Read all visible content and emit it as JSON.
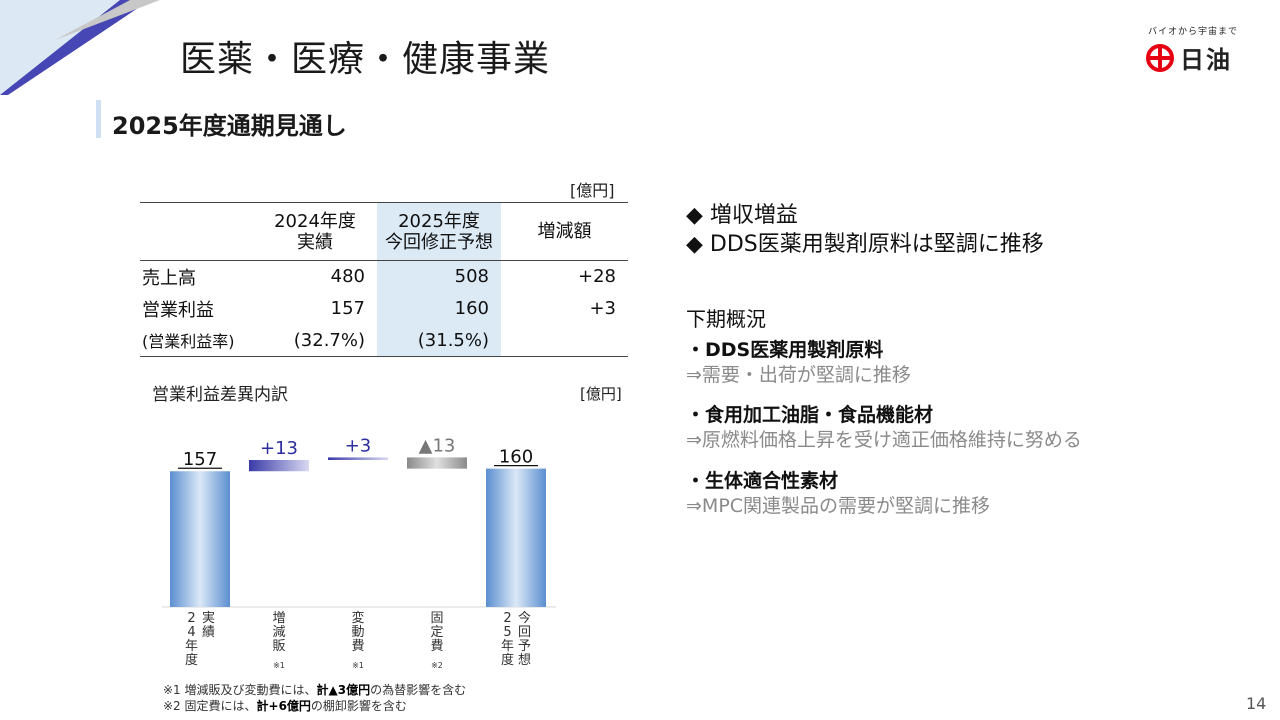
{
  "page": {
    "title": "医薬・医療・健康事業",
    "subtitle": "2025年度通期見通し",
    "page_number": "14"
  },
  "logo": {
    "tagline": "バイオから宇宙まで",
    "name": "日油"
  },
  "table": {
    "unit": "[億円]",
    "headers": [
      "",
      "2024年度\n実績",
      "2025年度\n今回修正予想",
      "増減額"
    ],
    "rows": [
      [
        "売上高",
        "480",
        "508",
        "+28"
      ],
      [
        "営業利益",
        "157",
        "160",
        "+3"
      ],
      [
        "(営業利益率)",
        "(32.7%)",
        "(31.5%)",
        ""
      ]
    ]
  },
  "chart_data": {
    "type": "bar",
    "subtype": "waterfall",
    "title": "営業利益差異内訳",
    "unit": "[億円]",
    "categories": [
      "24年度実績",
      "増減販",
      "変動費",
      "固定費",
      "25年度今回予想"
    ],
    "category_labels": [
      {
        "cols": [
          "24年度",
          "実績"
        ],
        "note": ""
      },
      {
        "cols": [
          "増減販"
        ],
        "note": "※1"
      },
      {
        "cols": [
          "変動費"
        ],
        "note": "※1"
      },
      {
        "cols": [
          "固定費"
        ],
        "note": "※2"
      },
      {
        "cols": [
          "25年度",
          "今回予想"
        ],
        "note": ""
      }
    ],
    "values": [
      157,
      13,
      3,
      -13,
      160
    ],
    "value_labels": [
      "157",
      "+13",
      "+3",
      "▲13",
      "160"
    ],
    "bar_kinds": [
      "total",
      "increase",
      "increase",
      "decrease",
      "total"
    ],
    "colors": {
      "total": "#5b93d3",
      "increase": "#3a3aa8",
      "decrease": "#9a9a9a"
    },
    "ylim": [
      0,
      170
    ]
  },
  "footnotes": [
    {
      "prefix": "※1 増減販及び変動費には、",
      "bold": "計▲3億円",
      "suffix": "の為替影響を含む"
    },
    {
      "prefix": "※2 固定費には、",
      "bold": "計+6億円",
      "suffix": "の棚卸影響を含む"
    }
  ],
  "right": {
    "bullets": [
      "◆ 増収増益",
      "◆ DDS医薬用製剤原料は堅調に推移"
    ],
    "heading": "下期概況",
    "items": [
      {
        "title": "・DDS医薬用製剤原料",
        "desc": "⇒需要・出荷が堅調に推移"
      },
      {
        "title": "・食用加工油脂・食品機能材",
        "desc": "⇒原燃料価格上昇を受け適正価格維持に努める"
      },
      {
        "title": "・生体適合性素材",
        "desc": "⇒MPC関連製品の需要が堅調に推移"
      }
    ]
  }
}
